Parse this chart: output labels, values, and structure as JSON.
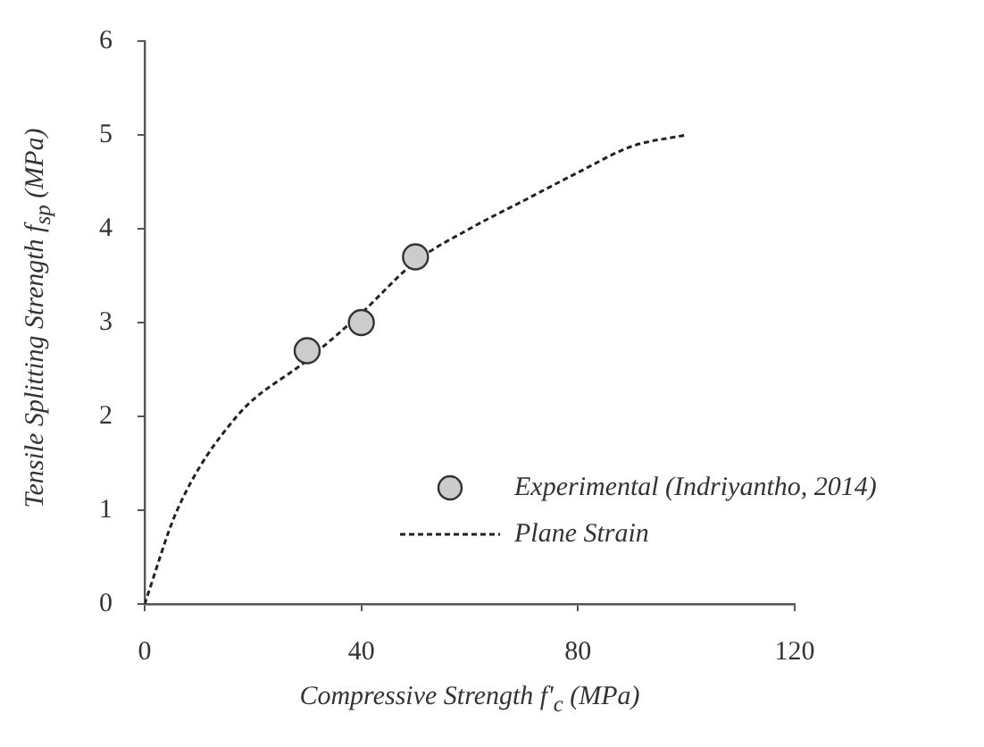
{
  "chart_data": {
    "type": "scatter",
    "xlabel": "Compressive Strength f'$_{c}$ (MPa)",
    "ylabel": "Tensile Splitting Strength f$_{sp}$ (MPa)",
    "xlim": [
      0,
      120
    ],
    "xticks": [
      0,
      40,
      80,
      120
    ],
    "ylim": [
      0,
      6
    ],
    "yticks": [
      0,
      1,
      2,
      3,
      4,
      5,
      6
    ],
    "grid": false,
    "legend": "bottom right",
    "series": [
      {
        "name": "Experimental (Indriyantho, 2014)",
        "color": "#cccccc",
        "marker": "circle",
        "x": [
          30,
          40,
          50
        ],
        "values": [
          2.7,
          3.0,
          3.7
        ]
      },
      {
        "name": "Plane Strain",
        "type": "line",
        "color": "#222222",
        "marker": "none",
        "line_style": "dashed",
        "x": [
          0,
          6,
          17,
          30,
          40,
          50,
          60,
          70,
          80,
          90,
          100
        ],
        "values": [
          0,
          1.0,
          2.0,
          2.6,
          3.1,
          3.65,
          4.0,
          4.3,
          4.6,
          4.88,
          5.0
        ]
      }
    ]
  }
}
